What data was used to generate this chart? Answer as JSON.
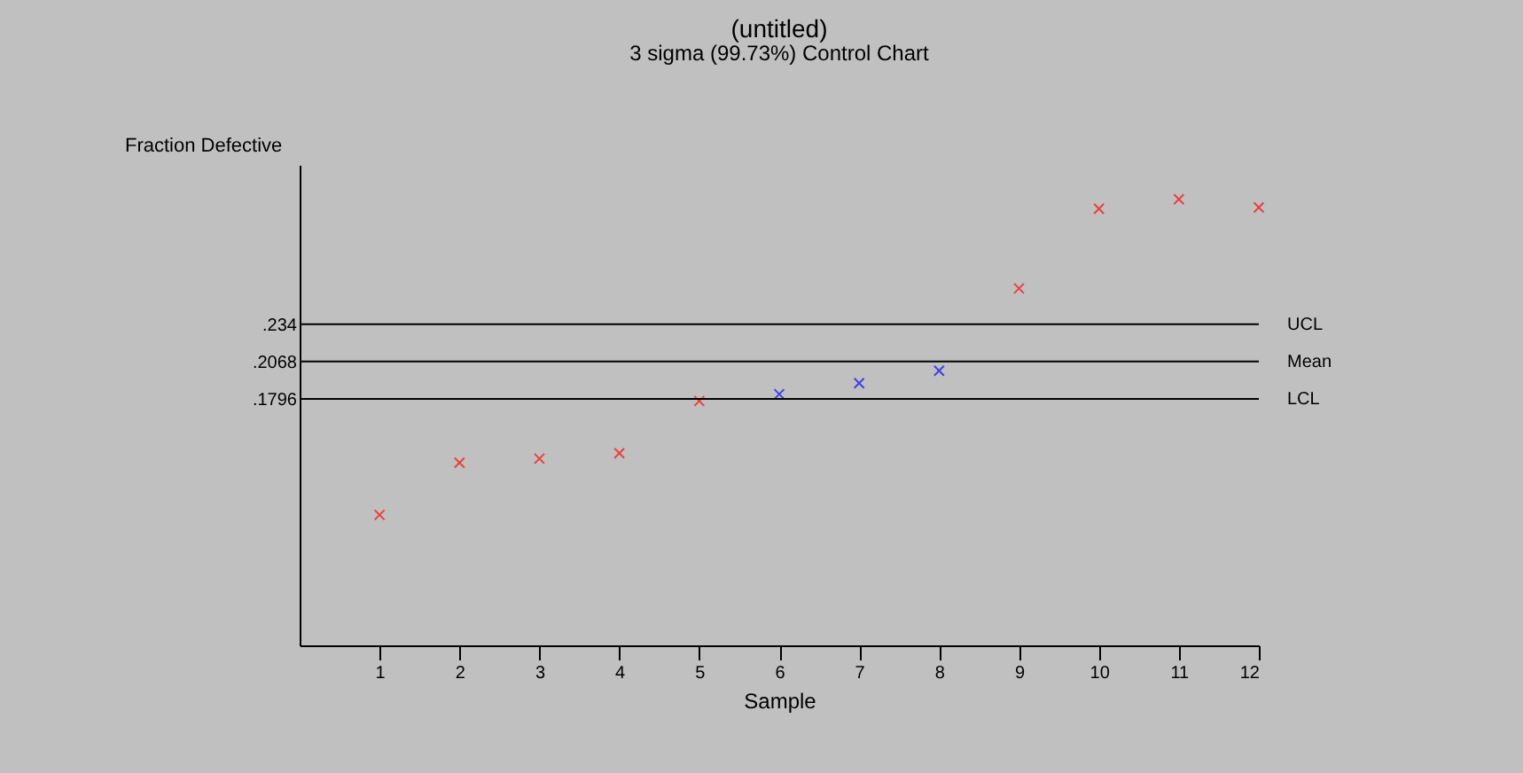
{
  "chart_data": {
    "type": "scatter",
    "title": "(untitled)",
    "subtitle": "3 sigma (99.73%) Control Chart",
    "xlabel": "Sample",
    "ylabel": "Fraction Defective",
    "x": [
      1,
      2,
      3,
      4,
      5,
      6,
      7,
      8,
      9,
      10,
      11,
      12
    ],
    "series": [
      {
        "color": "#e84040",
        "values": [
          0.095,
          0.133,
          0.136,
          0.14,
          0.178,
          null,
          null,
          null,
          0.26,
          0.318,
          0.325,
          0.319
        ]
      },
      {
        "color": "#4040e0",
        "values": [
          null,
          null,
          null,
          null,
          null,
          0.183,
          0.191,
          0.2,
          null,
          null,
          null,
          null
        ]
      }
    ],
    "xlim": [
      0,
      12
    ],
    "xticks": [
      1,
      2,
      3,
      4,
      5,
      6,
      7,
      8,
      9,
      10,
      11,
      12
    ],
    "ylim": [
      0,
      0.35
    ],
    "yticks": [
      {
        "value": 0.1796,
        "label": ".1796"
      },
      {
        "value": 0.2068,
        "label": ".2068"
      },
      {
        "value": 0.234,
        "label": ".234"
      }
    ],
    "ref_lines": [
      {
        "axis": "y",
        "value": 0.234,
        "label": "UCL",
        "color": "#000000"
      },
      {
        "axis": "y",
        "value": 0.2068,
        "label": "Mean",
        "color": "#000000"
      },
      {
        "axis": "y",
        "value": 0.1796,
        "label": "LCL",
        "color": "#000000"
      }
    ],
    "grid": false,
    "legend": false,
    "marker": "cross"
  }
}
